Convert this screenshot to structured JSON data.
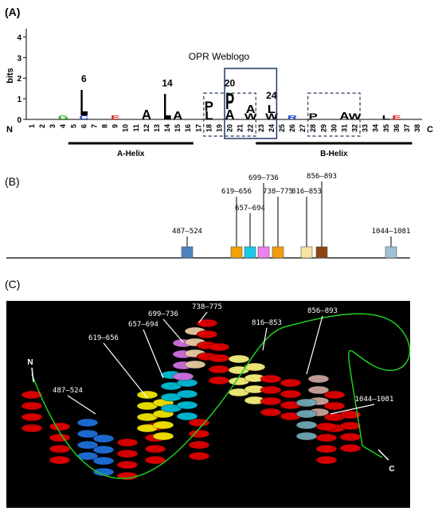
{
  "panel_labels": [
    "(A)",
    "(B)",
    "(C)"
  ],
  "chart_data": {
    "type": "logo",
    "title": "OPR Weblogo",
    "y_label": "bits",
    "ylim": [
      0,
      4.4
    ],
    "yticks": [
      0,
      1,
      2,
      3,
      4
    ],
    "categories": [
      "1",
      "2",
      "3",
      "4",
      "5",
      "6",
      "7",
      "8",
      "9",
      "10",
      "11",
      "12",
      "13",
      "14",
      "15",
      "16",
      "17",
      "18",
      "19",
      "20",
      "21",
      "22",
      "23",
      "24",
      "25",
      "26",
      "27",
      "28",
      "29",
      "30",
      "31",
      "32",
      "33",
      "34",
      "35",
      "36",
      "37",
      "38"
    ],
    "start_label": "N",
    "end_label": "C",
    "letters": [
      {
        "position": "4",
        "letter": "G",
        "height": 0.2,
        "color": "#22aa22"
      },
      {
        "position": "6",
        "letter": "C",
        "height": 0.2,
        "color": "#2244cc"
      },
      {
        "position": "6",
        "letter": "L",
        "height": 1.3,
        "color": "#000000"
      },
      {
        "position": "9",
        "letter": "E",
        "height": 0.2,
        "color": "#dd2222"
      },
      {
        "position": "12",
        "letter": "A",
        "height": 0.5,
        "color": "#000000"
      },
      {
        "position": "14",
        "letter": "L",
        "height": 1.3,
        "color": "#000000"
      },
      {
        "position": "15",
        "letter": "A",
        "height": 0.4,
        "color": "#000000"
      },
      {
        "position": "18",
        "letter": "L",
        "height": 0.4,
        "color": "#000000"
      },
      {
        "position": "18",
        "letter": "P",
        "height": 0.5,
        "color": "#000000"
      },
      {
        "position": "20",
        "letter": "A",
        "height": 0.5,
        "color": "#000000"
      },
      {
        "position": "20",
        "letter": "P",
        "height": 0.8,
        "color": "#000000"
      },
      {
        "position": "22",
        "letter": "W",
        "height": 0.3,
        "color": "#000000"
      },
      {
        "position": "22",
        "letter": "A",
        "height": 0.4,
        "color": "#000000"
      },
      {
        "position": "24",
        "letter": "W",
        "height": 0.3,
        "color": "#000000"
      },
      {
        "position": "24",
        "letter": "L",
        "height": 0.4,
        "color": "#000000"
      },
      {
        "position": "26",
        "letter": "R",
        "height": 0.2,
        "color": "#2244cc"
      },
      {
        "position": "28",
        "letter": "P",
        "height": 0.3,
        "color": "#000000"
      },
      {
        "position": "31",
        "letter": "A",
        "height": 0.35,
        "color": "#000000"
      },
      {
        "position": "32",
        "letter": "W",
        "height": 0.3,
        "color": "#000000"
      },
      {
        "position": "35",
        "letter": "L",
        "height": 0.2,
        "color": "#000000"
      },
      {
        "position": "36",
        "letter": "E",
        "height": 0.2,
        "color": "#dd2222"
      }
    ],
    "annotations": [
      "6",
      "14",
      "20",
      "24"
    ],
    "dashed_boxes": [
      {
        "from": "18",
        "to": "22"
      },
      {
        "from": "28",
        "to": "32"
      }
    ],
    "solid_boxes": [
      {
        "from": "20",
        "to": "24"
      }
    ],
    "regions": [
      {
        "label": "A-Helix",
        "from": "5",
        "to": "16"
      },
      {
        "label": "B-Helix",
        "from": "23",
        "to": "37"
      }
    ]
  },
  "domains": [
    {
      "label": "487–524",
      "color": "#4f81bd"
    },
    {
      "label": "619–656",
      "color": "#f5a300"
    },
    {
      "label": "657–694",
      "color": "#19c8e8"
    },
    {
      "label": "699–736",
      "color": "#ee82ee"
    },
    {
      "label": "738–775",
      "color": "#f39c12"
    },
    {
      "label": "816–853",
      "color": "#f8e3a0"
    },
    {
      "label": "856–893",
      "color": "#8b4513"
    },
    {
      "label": "1044–1081",
      "color": "#9ec3d6"
    }
  ],
  "structure_labels": {
    "n_term": "N",
    "c_term": "C"
  }
}
